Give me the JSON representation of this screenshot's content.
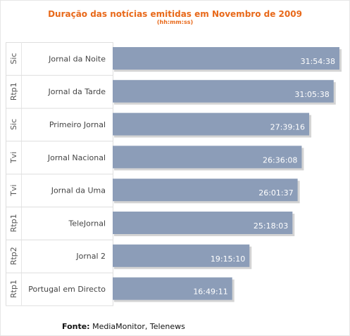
{
  "chart_data": {
    "type": "bar",
    "orientation": "horizontal",
    "title": "Duração das notícias emitidas em Novembro de 2009",
    "subtitle": "(hh:mm:ss)",
    "categories": [
      {
        "channel": "Sic",
        "program": "Jornal da Noite"
      },
      {
        "channel": "Rtp1",
        "program": "Jornal da Tarde"
      },
      {
        "channel": "Sic",
        "program": "Primeiro Jornal"
      },
      {
        "channel": "Tvi",
        "program": "Jornal Nacional"
      },
      {
        "channel": "Tvi",
        "program": "Jornal da Uma"
      },
      {
        "channel": "Rtp1",
        "program": "TeleJornal"
      },
      {
        "channel": "Rtp2",
        "program": "Jornal 2"
      },
      {
        "channel": "Rtp1",
        "program": "Portugal em Directo"
      }
    ],
    "values": [
      "31:54:38",
      "31:05:38",
      "27:39:16",
      "26:36:08",
      "26:01:37",
      "25:18:03",
      "19:15:10",
      "16:49:11"
    ],
    "bar_color": "#8c9db8",
    "label_color": "#ffffff",
    "grid": false
  },
  "source": {
    "label": "Fonte:",
    "text": "MediaMonitor, Telenews"
  }
}
